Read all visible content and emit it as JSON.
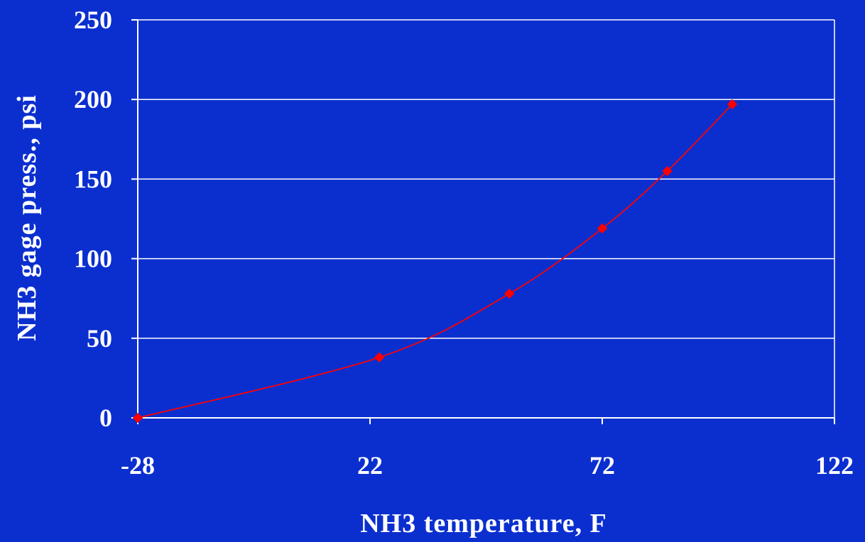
{
  "chart_data": {
    "type": "line",
    "title": "",
    "xlabel": "NH3 temperature, F",
    "ylabel": "NH3 gage press., psi",
    "xlim": [
      -28,
      122
    ],
    "ylim": [
      0,
      250
    ],
    "x_ticks": [
      -28,
      22,
      72,
      122
    ],
    "y_ticks": [
      0,
      50,
      100,
      150,
      200,
      250
    ],
    "grid": true,
    "legend": "none",
    "colors": {
      "background": "#0b2fcf",
      "axis": "#ffffff",
      "grid": "#ffffff",
      "series": "#ff0000"
    },
    "series": [
      {
        "x": [
          -28,
          24,
          52,
          72,
          86,
          100
        ],
        "y": [
          0,
          38,
          78,
          119,
          155,
          197
        ]
      }
    ]
  }
}
